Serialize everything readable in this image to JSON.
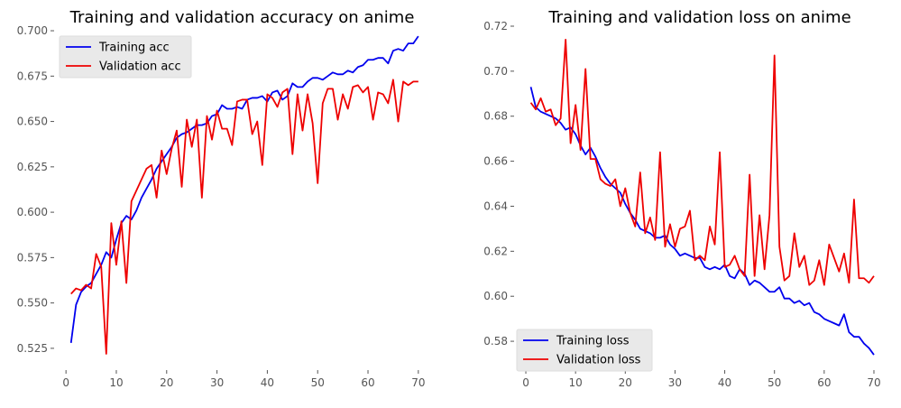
{
  "chart_data": [
    {
      "type": "line",
      "title": "Training and validation accuracy on anime",
      "xlabel": "",
      "ylabel": "",
      "xlim": [
        -2,
        72
      ],
      "ylim": [
        0.514,
        0.705
      ],
      "xticks": [
        0,
        10,
        20,
        30,
        40,
        50,
        60,
        70
      ],
      "yticks": [
        0.525,
        0.55,
        0.575,
        0.6,
        0.625,
        0.65,
        0.675,
        0.7
      ],
      "ytick_labels": [
        "0.525",
        "0.550",
        "0.575",
        "0.600",
        "0.625",
        "0.650",
        "0.675",
        "0.700"
      ],
      "xtick_labels": [
        "0",
        "10",
        "20",
        "30",
        "40",
        "50",
        "60",
        "70"
      ],
      "grid": false,
      "legend_position": "top-left",
      "x": [
        1,
        2,
        3,
        4,
        5,
        6,
        7,
        8,
        9,
        10,
        11,
        12,
        13,
        14,
        15,
        16,
        17,
        18,
        19,
        20,
        21,
        22,
        23,
        24,
        25,
        26,
        27,
        28,
        29,
        30,
        31,
        32,
        33,
        34,
        35,
        36,
        37,
        38,
        39,
        40,
        41,
        42,
        43,
        44,
        45,
        46,
        47,
        48,
        49,
        50,
        51,
        52,
        53,
        54,
        55,
        56,
        57,
        58,
        59,
        60,
        61,
        62,
        63,
        64,
        65,
        66,
        67,
        68,
        69,
        70
      ],
      "series": [
        {
          "name": "Training acc",
          "color": "#0000ee",
          "values": [
            0.528,
            0.549,
            0.556,
            0.559,
            0.561,
            0.566,
            0.571,
            0.578,
            0.575,
            0.585,
            0.594,
            0.598,
            0.596,
            0.601,
            0.608,
            0.613,
            0.618,
            0.624,
            0.628,
            0.632,
            0.636,
            0.641,
            0.643,
            0.644,
            0.646,
            0.648,
            0.648,
            0.649,
            0.653,
            0.654,
            0.659,
            0.657,
            0.657,
            0.658,
            0.657,
            0.662,
            0.663,
            0.663,
            0.664,
            0.661,
            0.666,
            0.667,
            0.662,
            0.664,
            0.671,
            0.669,
            0.669,
            0.672,
            0.674,
            0.674,
            0.673,
            0.675,
            0.677,
            0.676,
            0.676,
            0.678,
            0.677,
            0.68,
            0.681,
            0.684,
            0.684,
            0.685,
            0.685,
            0.682,
            0.689,
            0.69,
            0.689,
            0.693,
            0.693,
            0.697
          ]
        },
        {
          "name": "Validation acc",
          "color": "#ee0000",
          "values": [
            0.555,
            0.558,
            0.557,
            0.56,
            0.558,
            0.577,
            0.57,
            0.522,
            0.594,
            0.571,
            0.595,
            0.561,
            0.606,
            0.612,
            0.618,
            0.624,
            0.626,
            0.608,
            0.634,
            0.621,
            0.635,
            0.645,
            0.614,
            0.651,
            0.636,
            0.651,
            0.608,
            0.653,
            0.64,
            0.656,
            0.646,
            0.646,
            0.637,
            0.661,
            0.662,
            0.662,
            0.643,
            0.65,
            0.626,
            0.665,
            0.663,
            0.658,
            0.666,
            0.668,
            0.632,
            0.665,
            0.645,
            0.665,
            0.649,
            0.616,
            0.66,
            0.668,
            0.668,
            0.651,
            0.665,
            0.657,
            0.669,
            0.67,
            0.666,
            0.669,
            0.651,
            0.666,
            0.665,
            0.66,
            0.673,
            0.65,
            0.672,
            0.67,
            0.672,
            0.672
          ]
        }
      ]
    },
    {
      "type": "line",
      "title": "Training and validation loss on anime",
      "xlabel": "",
      "ylabel": "",
      "xlim": [
        -2,
        72
      ],
      "ylim": [
        0.568,
        0.722
      ],
      "xticks": [
        0,
        10,
        20,
        30,
        40,
        50,
        60,
        70
      ],
      "yticks": [
        0.58,
        0.6,
        0.62,
        0.64,
        0.66,
        0.68,
        0.7,
        0.72
      ],
      "ytick_labels": [
        "0.58",
        "0.60",
        "0.62",
        "0.64",
        "0.66",
        "0.68",
        "0.70",
        "0.72"
      ],
      "xtick_labels": [
        "0",
        "10",
        "20",
        "30",
        "40",
        "50",
        "60",
        "70"
      ],
      "grid": false,
      "legend_position": "bottom-left",
      "x": [
        1,
        2,
        3,
        4,
        5,
        6,
        7,
        8,
        9,
        10,
        11,
        12,
        13,
        14,
        15,
        16,
        17,
        18,
        19,
        20,
        21,
        22,
        23,
        24,
        25,
        26,
        27,
        28,
        29,
        30,
        31,
        32,
        33,
        34,
        35,
        36,
        37,
        38,
        39,
        40,
        41,
        42,
        43,
        44,
        45,
        46,
        47,
        48,
        49,
        50,
        51,
        52,
        53,
        54,
        55,
        56,
        57,
        58,
        59,
        60,
        61,
        62,
        63,
        64,
        65,
        66,
        67,
        68,
        69,
        70
      ],
      "series": [
        {
          "name": "Training loss",
          "color": "#0000ee",
          "values": [
            0.693,
            0.684,
            0.682,
            0.681,
            0.68,
            0.679,
            0.677,
            0.674,
            0.675,
            0.672,
            0.667,
            0.663,
            0.666,
            0.662,
            0.657,
            0.653,
            0.65,
            0.648,
            0.646,
            0.641,
            0.637,
            0.634,
            0.63,
            0.629,
            0.628,
            0.626,
            0.626,
            0.627,
            0.623,
            0.621,
            0.618,
            0.619,
            0.618,
            0.617,
            0.617,
            0.613,
            0.612,
            0.613,
            0.612,
            0.614,
            0.609,
            0.608,
            0.612,
            0.61,
            0.605,
            0.607,
            0.606,
            0.604,
            0.602,
            0.602,
            0.604,
            0.599,
            0.599,
            0.597,
            0.598,
            0.596,
            0.597,
            0.593,
            0.592,
            0.59,
            0.589,
            0.588,
            0.587,
            0.592,
            0.584,
            0.582,
            0.582,
            0.579,
            0.577,
            0.574
          ]
        },
        {
          "name": "Validation loss",
          "color": "#ee0000",
          "values": [
            0.686,
            0.683,
            0.688,
            0.682,
            0.683,
            0.676,
            0.679,
            0.714,
            0.668,
            0.685,
            0.665,
            0.701,
            0.661,
            0.661,
            0.652,
            0.65,
            0.649,
            0.652,
            0.64,
            0.648,
            0.637,
            0.631,
            0.655,
            0.628,
            0.635,
            0.625,
            0.664,
            0.622,
            0.632,
            0.622,
            0.63,
            0.631,
            0.638,
            0.616,
            0.618,
            0.616,
            0.631,
            0.623,
            0.664,
            0.613,
            0.614,
            0.618,
            0.612,
            0.609,
            0.654,
            0.609,
            0.636,
            0.612,
            0.636,
            0.707,
            0.622,
            0.607,
            0.609,
            0.628,
            0.613,
            0.618,
            0.605,
            0.607,
            0.616,
            0.605,
            0.623,
            0.617,
            0.611,
            0.619,
            0.606,
            0.643,
            0.608,
            0.608,
            0.606,
            0.609
          ]
        }
      ]
    }
  ]
}
